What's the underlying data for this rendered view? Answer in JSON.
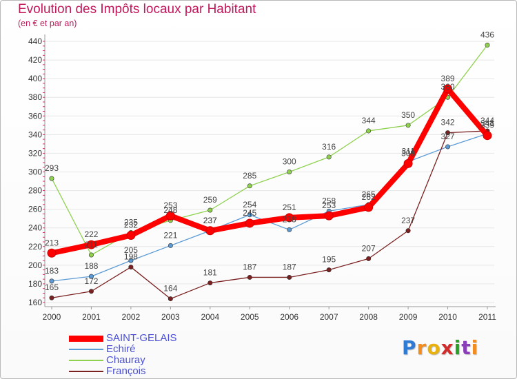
{
  "chart_data": {
    "type": "line",
    "title": "Evolution des Impôts locaux par Habitant",
    "subtitle": "(en € et par an)",
    "x": [
      "2000",
      "2001",
      "2002",
      "2003",
      "2004",
      "2005",
      "2006",
      "2007",
      "2008",
      "2009",
      "2010",
      "2011"
    ],
    "ylim": [
      160,
      440
    ],
    "yticks": [
      160,
      180,
      200,
      220,
      240,
      260,
      280,
      300,
      320,
      340,
      360,
      380,
      400,
      420,
      440
    ],
    "series": [
      {
        "name": "SAINT-GELAIS",
        "color": "#ff0000",
        "values": [
          213,
          222,
          232,
          253,
          237,
          245,
          251,
          253,
          262,
          309,
          389,
          339
        ]
      },
      {
        "name": "Echiré",
        "color": "#5b9bd5",
        "values": [
          183,
          188,
          205,
          221,
          237,
          254,
          238,
          258,
          265,
          311,
          327,
          341
        ]
      },
      {
        "name": "Chauray",
        "color": "#8fd14f",
        "values": [
          293,
          211,
          235,
          248,
          259,
          285,
          300,
          316,
          344,
          350,
          380,
          436
        ]
      },
      {
        "name": "François",
        "color": "#7a2020",
        "values": [
          165,
          172,
          198,
          164,
          181,
          187,
          187,
          195,
          207,
          237,
          342,
          344
        ]
      }
    ]
  },
  "logo": {
    "letters": [
      "P",
      "r",
      "o",
      "x",
      "i",
      "t",
      "i"
    ],
    "colors": [
      "#2e7bd6",
      "#f28c1e",
      "#e8b010",
      "#d22b2b",
      "#2aa02a",
      "#8a3fb8",
      "#f28c1e"
    ]
  }
}
